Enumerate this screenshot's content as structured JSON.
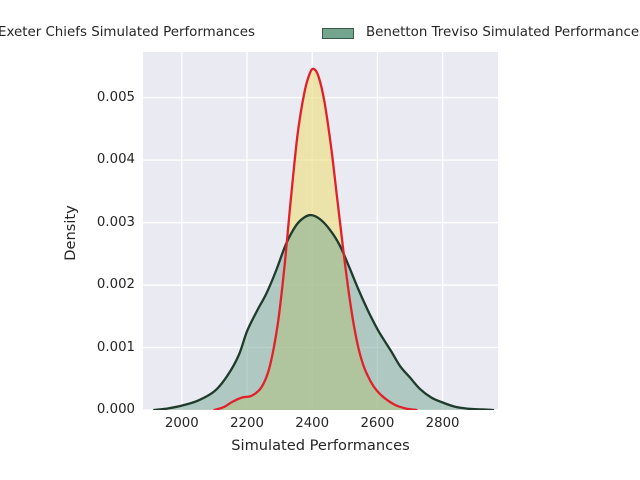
{
  "legend": {
    "items": [
      {
        "key": "exeter-chiefs",
        "label": "Exeter Chiefs Simulated Performances",
        "patch_offscreen": true
      },
      {
        "key": "benetton-treviso",
        "label": "Benetton Treviso Simulated Performances",
        "patch_color": "#74a58f",
        "patch_edge_color": "#3a5a48"
      }
    ]
  },
  "colors": {
    "figure_background": "#ffffff",
    "axes_background": "#eaeaf2",
    "grid": "#ffffff",
    "text": "#262626",
    "exeter_line": "#e2202c",
    "exeter_fill": "#ecdf83",
    "benetton_line": "#1e3b2b",
    "benetton_fill": "#74a58f"
  },
  "chart_data": {
    "type": "area",
    "subtype": "kde-density",
    "title": "",
    "xlabel": "Simulated Performances",
    "ylabel": "Density",
    "xlim": [
      1881,
      2970
    ],
    "ylim": [
      0,
      0.00573
    ],
    "xticks": [
      2000,
      2200,
      2400,
      2600,
      2800
    ],
    "yticks": [
      0,
      0.001,
      0.002,
      0.003,
      0.004,
      0.005
    ],
    "ytick_labels": [
      "0.000",
      "0.001",
      "0.002",
      "0.003",
      "0.004",
      "0.005"
    ],
    "grid": true,
    "legend_position": "top",
    "series": [
      {
        "key": "exeter-chiefs",
        "name": "Exeter Chiefs Simulated Performances",
        "line_color": "#e2202c",
        "fill_color": "#ecdf83",
        "fill_alpha": 0.65,
        "peak": {
          "x": 2405,
          "density": 0.00546
        },
        "points": [
          [
            2100,
            0
          ],
          [
            2130,
            5e-05
          ],
          [
            2155,
            0.00013
          ],
          [
            2185,
            0.0002
          ],
          [
            2215,
            0.00023
          ],
          [
            2245,
            0.00037
          ],
          [
            2270,
            0.0007
          ],
          [
            2295,
            0.0014
          ],
          [
            2315,
            0.0023
          ],
          [
            2335,
            0.0034
          ],
          [
            2355,
            0.0044
          ],
          [
            2375,
            0.00505
          ],
          [
            2392,
            0.00538
          ],
          [
            2405,
            0.00546
          ],
          [
            2420,
            0.00533
          ],
          [
            2438,
            0.00492
          ],
          [
            2458,
            0.00421
          ],
          [
            2478,
            0.00333
          ],
          [
            2498,
            0.00245
          ],
          [
            2518,
            0.00167
          ],
          [
            2538,
            0.00108
          ],
          [
            2558,
            0.0007
          ],
          [
            2580,
            0.00045
          ],
          [
            2600,
            0.0003
          ],
          [
            2625,
            0.00018
          ],
          [
            2655,
            8e-05
          ],
          [
            2690,
            2e-05
          ],
          [
            2720,
            0
          ]
        ]
      },
      {
        "key": "benetton-treviso",
        "name": "Benetton Treviso Simulated Performances",
        "line_color": "#1e3b2b",
        "fill_color": "#74a58f",
        "fill_alpha": 0.5,
        "peak": {
          "x": 2398,
          "density": 0.00312
        },
        "points": [
          [
            1915,
            0
          ],
          [
            1950,
            2e-05
          ],
          [
            2000,
            7e-05
          ],
          [
            2050,
            0.00015
          ],
          [
            2100,
            0.0003
          ],
          [
            2140,
            0.00055
          ],
          [
            2175,
            0.00088
          ],
          [
            2200,
            0.00126
          ],
          [
            2230,
            0.00158
          ],
          [
            2260,
            0.00187
          ],
          [
            2290,
            0.00224
          ],
          [
            2320,
            0.00266
          ],
          [
            2350,
            0.00295
          ],
          [
            2375,
            0.00308
          ],
          [
            2398,
            0.00312
          ],
          [
            2425,
            0.00305
          ],
          [
            2455,
            0.00288
          ],
          [
            2485,
            0.00263
          ],
          [
            2515,
            0.00227
          ],
          [
            2545,
            0.00189
          ],
          [
            2575,
            0.00155
          ],
          [
            2605,
            0.00125
          ],
          [
            2640,
            0.00096
          ],
          [
            2670,
            0.0007
          ],
          [
            2700,
            0.00052
          ],
          [
            2730,
            0.00034
          ],
          [
            2765,
            0.0002
          ],
          [
            2800,
            0.00012
          ],
          [
            2840,
            5e-05
          ],
          [
            2880,
            2e-05
          ],
          [
            2920,
            1e-05
          ],
          [
            2955,
            0
          ]
        ]
      }
    ]
  }
}
